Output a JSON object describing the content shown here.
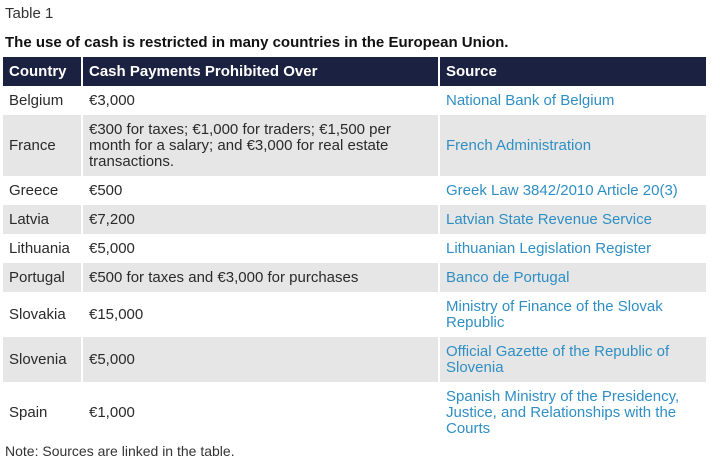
{
  "table_label": "Table 1",
  "caption": "The use of cash is restricted in many countries in the European Union.",
  "columns": [
    "Country",
    "Cash Payments Prohibited Over",
    "Source"
  ],
  "rows": [
    {
      "country": "Belgium",
      "limit": "€3,000",
      "source": "National Bank of Belgium"
    },
    {
      "country": "France",
      "limit": "€300 for taxes; €1,000 for traders; €1,500 per month for a salary; and €3,000 for real estate transactions.",
      "source": "French Administration"
    },
    {
      "country": "Greece",
      "limit": "€500",
      "source": "Greek Law 3842/2010 Article 20(3)"
    },
    {
      "country": "Latvia",
      "limit": "€7,200",
      "source": "Latvian State Revenue Service"
    },
    {
      "country": "Lithuania",
      "limit": "€5,000",
      "source": "Lithuanian Legislation Register"
    },
    {
      "country": "Portugal",
      "limit": "€500 for taxes and €3,000 for purchases",
      "source": "Banco de Portugal"
    },
    {
      "country": "Slovakia",
      "limit": "€15,000",
      "source": "Ministry of Finance of the Slovak Republic"
    },
    {
      "country": "Slovenia",
      "limit": "€5,000",
      "source": "Official Gazette of the Republic of Slovenia"
    },
    {
      "country": "Spain",
      "limit": "€1,000",
      "source": "Spanish Ministry of the Presidency, Justice, and Relationships with the Courts"
    }
  ],
  "note": "Note: Sources are linked in the table.",
  "colors": {
    "header_bg": "#1b2140",
    "stripe_bg": "#e6e6e6",
    "link": "#2f8fc4"
  }
}
